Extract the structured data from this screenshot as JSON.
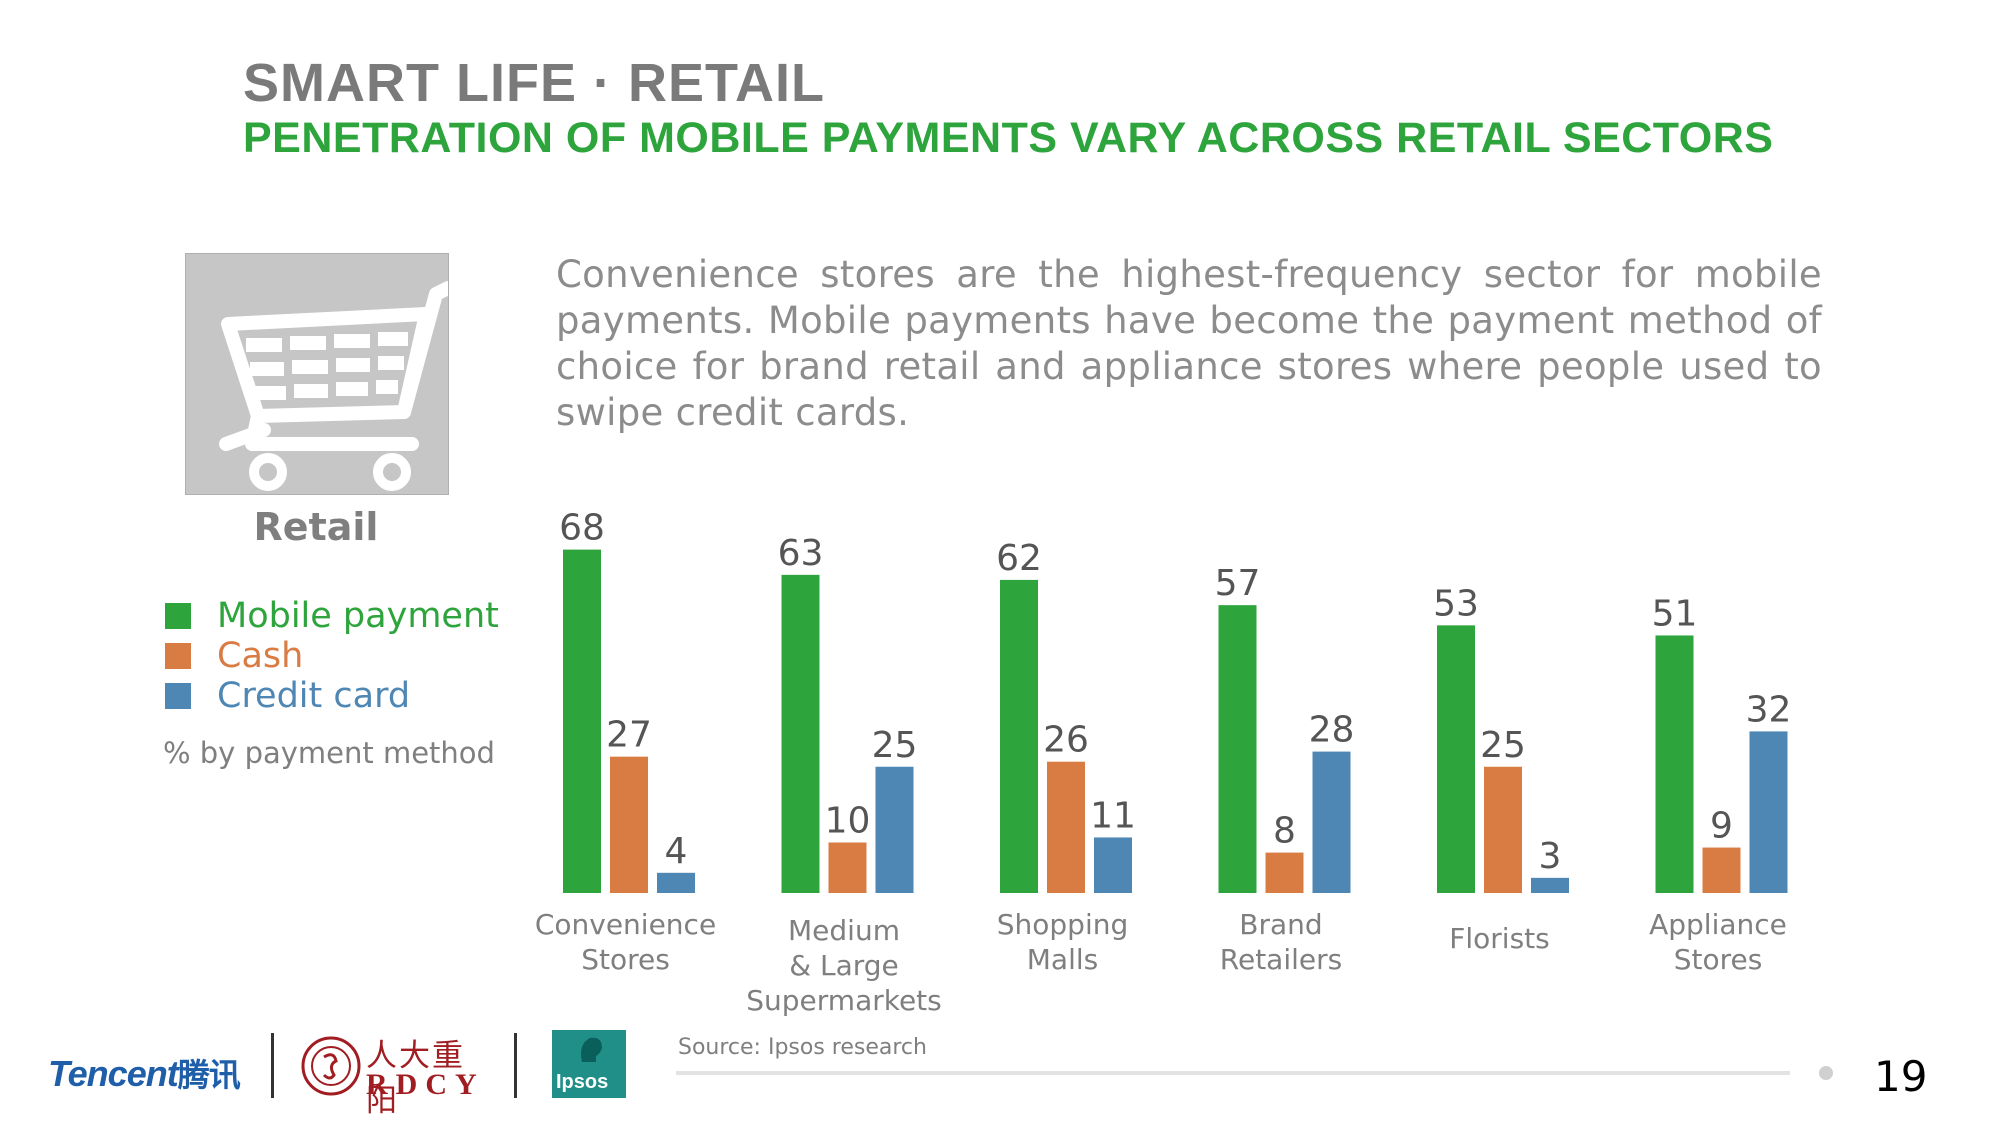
{
  "header": {
    "title": "SMART LIFE · RETAIL",
    "subtitle": "PENETRATION OF MOBILE PAYMENTS VARY ACROSS RETAIL SECTORS"
  },
  "sidebar": {
    "icon": "shopping-cart-icon",
    "label": "Retail",
    "legend": [
      {
        "label": "Mobile payment",
        "color": "#2ea43c"
      },
      {
        "label": "Cash",
        "color": "#d97c44"
      },
      {
        "label": "Credit card",
        "color": "#4f87b4"
      }
    ],
    "unit_note": "% by payment method"
  },
  "description": "Convenience stores are the highest-frequency sector for mobile payments. Mobile payments have become the payment method of choice for brand retail and appliance stores where people used to swipe credit cards.",
  "chart_data": {
    "type": "bar",
    "categories": [
      [
        "Convenience",
        "Stores"
      ],
      [
        "Medium",
        "& Large",
        "Supermarkets"
      ],
      [
        "Shopping",
        "Malls"
      ],
      [
        "Brand",
        "Retailers"
      ],
      [
        "Florists"
      ],
      [
        "Appliance",
        "Stores"
      ]
    ],
    "series": [
      {
        "name": "Mobile payment",
        "color": "#2ea43c",
        "values": [
          68,
          63,
          62,
          57,
          53,
          51
        ]
      },
      {
        "name": "Cash",
        "color": "#d97c44",
        "values": [
          27,
          10,
          26,
          8,
          25,
          9
        ]
      },
      {
        "name": "Credit card",
        "color": "#4f87b4",
        "values": [
          4,
          25,
          11,
          28,
          3,
          32
        ]
      }
    ],
    "ylim": [
      0,
      68
    ],
    "grid": false,
    "data_labels": true
  },
  "footer": {
    "source": "Source: Ipsos research",
    "page_number": "19",
    "logos": {
      "tencent": "Tencent",
      "tencent_cn": "腾讯",
      "rdcy_cn": "人大重阳",
      "rdcy_en": "RDCY",
      "ipsos": "Ipsos"
    }
  }
}
